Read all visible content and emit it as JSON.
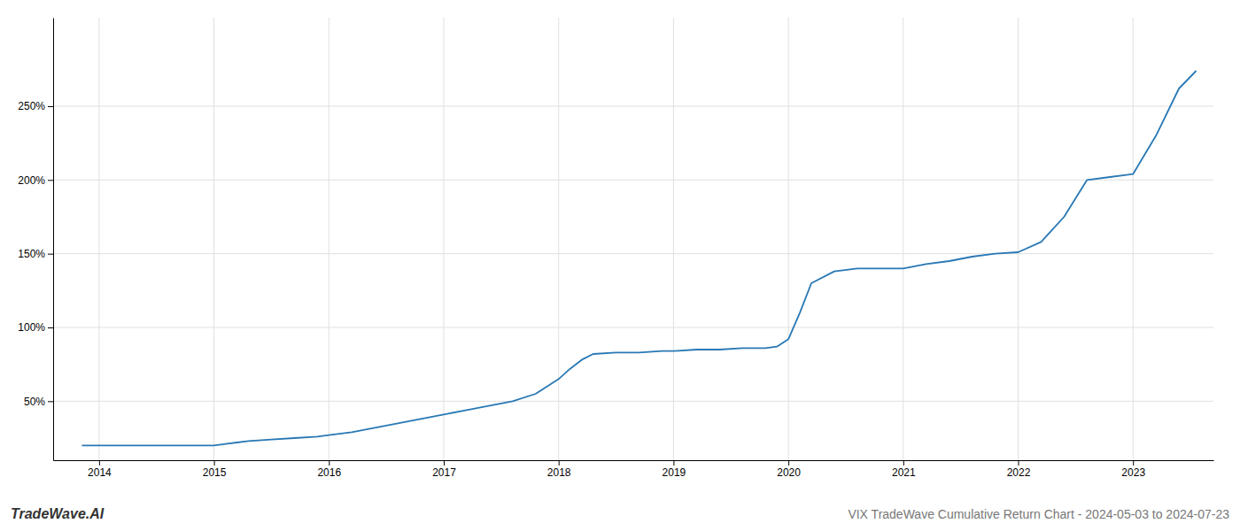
{
  "chart_data": {
    "type": "line",
    "title": "VIX TradeWave Cumulative Return Chart - 2024-05-03 to 2024-07-23",
    "annotations": [
      "TradeWave.AI"
    ],
    "color": "#2878b5",
    "x": [
      2013.85,
      2014.0,
      2014.1,
      2014.2,
      2014.4,
      2014.6,
      2014.8,
      2015.0,
      2015.1,
      2015.2,
      2015.3,
      2015.5,
      2015.7,
      2015.9,
      2016.0,
      2016.2,
      2016.4,
      2016.6,
      2016.8,
      2017.0,
      2017.2,
      2017.4,
      2017.6,
      2017.8,
      2018.0,
      2018.1,
      2018.2,
      2018.3,
      2018.5,
      2018.7,
      2018.9,
      2019.0,
      2019.2,
      2019.4,
      2019.6,
      2019.8,
      2019.9,
      2020.0,
      2020.1,
      2020.2,
      2020.4,
      2020.6,
      2020.8,
      2021.0,
      2021.2,
      2021.4,
      2021.6,
      2021.8,
      2022.0,
      2022.2,
      2022.4,
      2022.6,
      2022.8,
      2023.0,
      2023.2,
      2023.4,
      2023.55
    ],
    "values": [
      20,
      20,
      20,
      20,
      20,
      20,
      20,
      20,
      21,
      22,
      23,
      24,
      25,
      26,
      27,
      29,
      32,
      35,
      38,
      41,
      44,
      47,
      50,
      55,
      65,
      72,
      78,
      82,
      83,
      83,
      84,
      84,
      85,
      85,
      86,
      86,
      87,
      92,
      110,
      130,
      138,
      140,
      140,
      140,
      143,
      145,
      148,
      150,
      151,
      158,
      175,
      200,
      202,
      204,
      230,
      262,
      274
    ],
    "xlim": [
      2013.6,
      2023.7
    ],
    "ylim": [
      10,
      310
    ],
    "xticks": [
      2014,
      2015,
      2016,
      2017,
      2018,
      2019,
      2020,
      2021,
      2022,
      2023
    ],
    "yticks": [
      {
        "value": 50,
        "label": "50%"
      },
      {
        "value": 100,
        "label": "100%"
      },
      {
        "value": 150,
        "label": "150%"
      },
      {
        "value": 200,
        "label": "200%"
      },
      {
        "value": 250,
        "label": "250%"
      }
    ],
    "grid": true
  }
}
